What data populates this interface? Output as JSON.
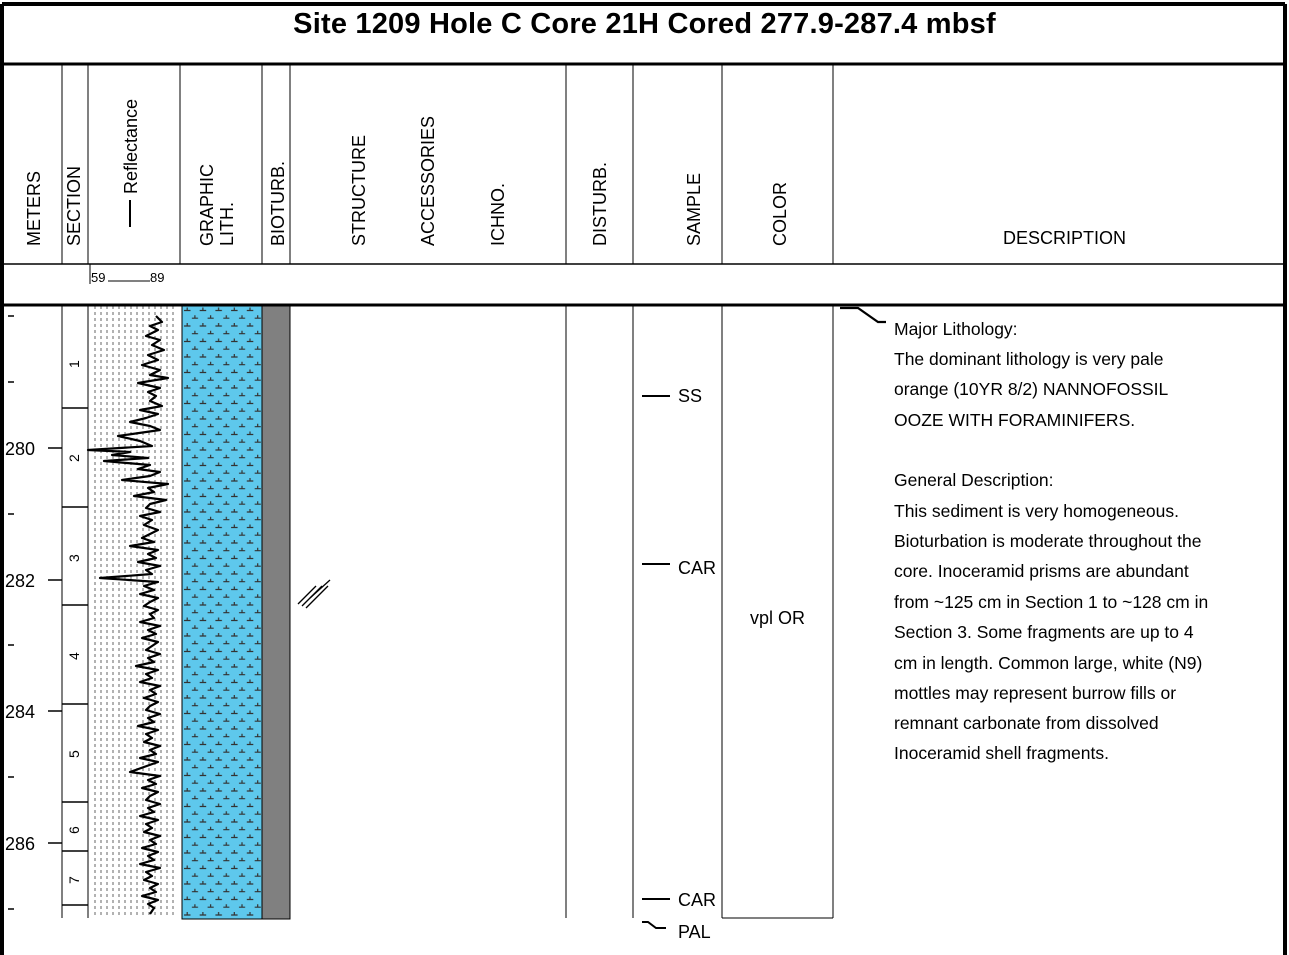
{
  "title": "Site 1209 Hole C Core 21H    Cored 277.9-287.4 mbsf",
  "headers": {
    "meters": "METERS",
    "section": "SECTION",
    "reflectance": "Reflectance",
    "graphic_lith": [
      "GRAPHIC",
      "LITH."
    ],
    "bioturb": "BIOTURB.",
    "structure": "STRUCTURE",
    "accessories": "ACCESSORIES",
    "ichno": "ICHNO.",
    "disturb": "DISTURB.",
    "sample": "SAMPLE",
    "color": "COLOR",
    "description": "DESCRIPTION"
  },
  "reflectance_scale": {
    "min": "59",
    "max": "89"
  },
  "depth_labels": [
    "280",
    "282",
    "284",
    "286"
  ],
  "sections": [
    "1",
    "2",
    "3",
    "4",
    "5",
    "6",
    "7"
  ],
  "samples": [
    {
      "label": "SS",
      "depth": 279.4
    },
    {
      "label": "CAR",
      "depth": 281.8
    },
    {
      "label": "CAR",
      "depth": 286.8
    },
    {
      "label": "PAL",
      "depth": 287.2
    }
  ],
  "color_value": "vpl OR",
  "description": {
    "major_heading": "Major Lithology:",
    "major_lines": [
      "The dominant lithology is very pale",
      "orange (10YR 8/2) NANNOFOSSIL",
      "OOZE WITH FORAMINIFERS."
    ],
    "general_heading": "General Description:",
    "general_lines": [
      "This sediment is very homogeneous.",
      "Bioturbation is moderate throughout the",
      "core.  Inoceramid prisms are abundant",
      "from ~125 cm in Section 1 to ~128 cm in",
      "Section 3.  Some fragments are up to 4",
      "cm in length.  Common large, white (N9)",
      "mottles may represent burrow fills or",
      "remnant carbonate from dissolved",
      "Inoceramid shell fragments."
    ]
  },
  "colors": {
    "lith_fill": "#5ec8ec",
    "lith_symbol": "#333333",
    "bioturb_fill": "#808080",
    "frame": "#000000"
  }
}
